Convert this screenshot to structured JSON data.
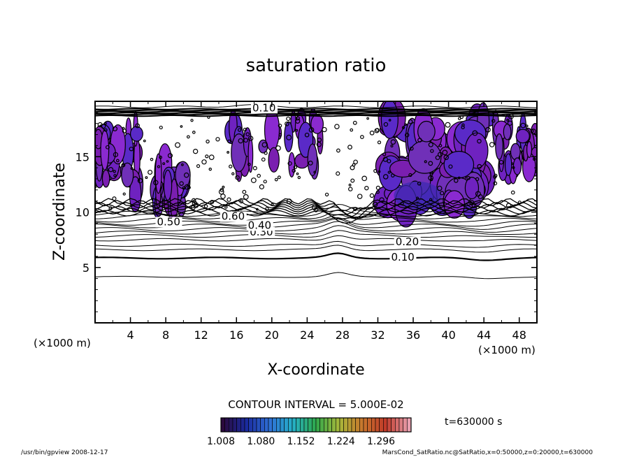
{
  "chart_data": {
    "type": "contour",
    "title": "saturation ratio",
    "xlabel": "X-coordinate",
    "ylabel": "Z-coordinate",
    "x_unit_label": "(×1000 m)",
    "z_unit_label": "(×1000 m)",
    "xlim": [
      0,
      50
    ],
    "ylim": [
      0,
      20
    ],
    "x_ticks": [
      4,
      8,
      12,
      16,
      20,
      24,
      28,
      32,
      36,
      40,
      44,
      48
    ],
    "y_ticks": [
      5,
      10,
      15
    ],
    "contour_interval_text": "CONTOUR INTERVAL = 5.000E-02",
    "contour_levels": [
      {
        "label": "0.10",
        "x": 33.5,
        "z": 5.6
      },
      {
        "label": "0.20",
        "x": 34.0,
        "z": 7.0
      },
      {
        "label": "0.30",
        "x": 17.5,
        "z": 7.9
      },
      {
        "label": "0.40",
        "x": 17.3,
        "z": 8.5
      },
      {
        "label": "0.50",
        "x": 7.0,
        "z": 8.8
      },
      {
        "label": "0.60",
        "x": 14.3,
        "z": 9.3
      },
      {
        "label": "0.10",
        "x": 17.8,
        "z": 19.1
      }
    ],
    "baseline_contours_z": [
      4.15,
      5.85,
      6.6,
      7.0,
      7.5,
      7.85,
      8.15,
      8.45,
      8.75,
      9.0,
      9.3,
      9.6,
      9.85
    ],
    "supersaturated_regions": [
      {
        "x": [
          33,
          44
        ],
        "z": [
          10.5,
          18.8
        ]
      },
      {
        "x": [
          15,
          26
        ],
        "z": [
          14,
          18.5
        ]
      },
      {
        "x": [
          7,
          10
        ],
        "z": [
          10.5,
          14.5
        ]
      },
      {
        "x": [
          0,
          5
        ],
        "z": [
          11,
          18
        ]
      },
      {
        "x": [
          45,
          50
        ],
        "z": [
          14,
          18
        ]
      }
    ],
    "color_scale": {
      "labels": [
        "1.008",
        "1.080",
        "1.152",
        "1.224",
        "1.296"
      ],
      "min": 1.008,
      "max": 1.35,
      "colors": [
        "#2b0a3d",
        "#1a2a9e",
        "#2f6fd6",
        "#25b0c8",
        "#2fa84a",
        "#a8b83a",
        "#c8762c",
        "#c03a2a",
        "#e8a0b0"
      ]
    },
    "time_label": "t=630000 s"
  },
  "footer": {
    "left": "/usr/bin/gpview  2008-12-17",
    "right": "MarsCond_SatRatio.nc@SatRatio,x=0:50000,z=0:20000,t=630000"
  }
}
